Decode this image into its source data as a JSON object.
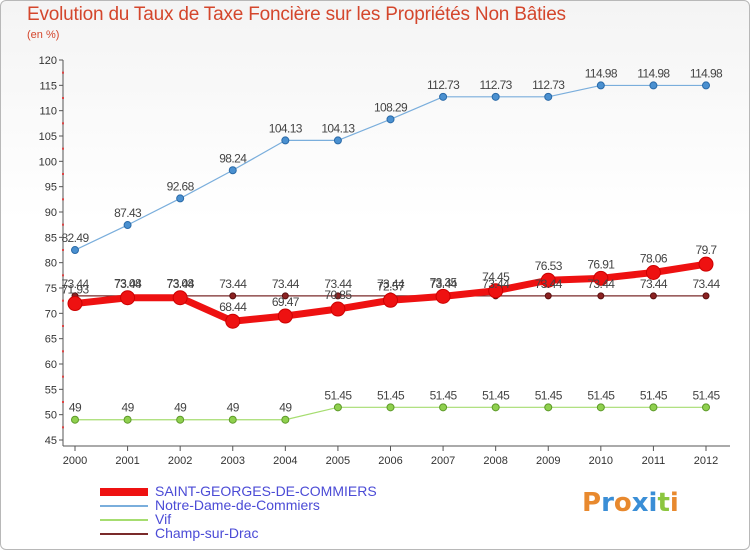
{
  "title": "Evolution du Taux de Taxe Foncière sur les Propriétés Non Bâties",
  "unit_label": "(en %)",
  "logo": {
    "text": "Proxiti",
    "letters": [
      "P",
      "r",
      "o",
      "x",
      "i",
      "t",
      "i"
    ],
    "colors": [
      "#e8892e",
      "#3a8ed6",
      "#e8892e",
      "#3a8ed6",
      "#3a8ed6",
      "#8cc63f",
      "#e8892e"
    ]
  },
  "chart_data": {
    "type": "line",
    "x": [
      "2000",
      "2001",
      "2002",
      "2003",
      "2004",
      "2005",
      "2006",
      "2007",
      "2008",
      "2009",
      "2010",
      "2011",
      "2012"
    ],
    "ylim": [
      45,
      120
    ],
    "yticks": [
      45,
      50,
      55,
      60,
      65,
      70,
      75,
      80,
      85,
      90,
      95,
      100,
      105,
      110,
      115,
      120
    ],
    "grid": false,
    "legend_position": "bottom-left",
    "series": [
      {
        "name": "SAINT-GEORGES-DE-COMMIERS",
        "color": "#ee1111",
        "marker_fill": "#ee1111",
        "marker_edge": "#cc0000",
        "width": 7,
        "marker_r": 7,
        "values": [
          71.93,
          73.08,
          73.08,
          68.44,
          69.47,
          70.85,
          72.57,
          73.35,
          74.45,
          76.53,
          76.91,
          78.06,
          79.7
        ],
        "labels": [
          "71.93",
          "73.08",
          "73.08",
          "68.44",
          "69.47",
          "70.85",
          "72.57",
          "73.35",
          "74.45",
          "76.53",
          "76.91",
          "78.06",
          "79.7"
        ]
      },
      {
        "name": "Notre-Dame-de-Commiers",
        "color": "#7aaedc",
        "marker_fill": "#4a90d0",
        "marker_edge": "#2a6aa8",
        "width": 1.2,
        "marker_r": 3.5,
        "values": [
          82.49,
          87.43,
          92.68,
          98.24,
          104.13,
          104.13,
          108.29,
          112.73,
          112.73,
          112.73,
          114.98,
          114.98,
          114.98
        ],
        "labels": [
          "82.49",
          "87.43",
          "92.68",
          "98.24",
          "104.13",
          "104.13",
          "108.29",
          "112.73",
          "112.73",
          "112.73",
          "114.98",
          "114.98",
          "114.98"
        ]
      },
      {
        "name": "Vif",
        "color": "#a6dd70",
        "marker_fill": "#8fd04e",
        "marker_edge": "#5e9a2a",
        "width": 1.2,
        "marker_r": 3.5,
        "values": [
          49,
          49,
          49,
          49,
          49,
          51.45,
          51.45,
          51.45,
          51.45,
          51.45,
          51.45,
          51.45,
          51.45
        ],
        "labels": [
          "49",
          "49",
          "49",
          "49",
          "49",
          "51.45",
          "51.45",
          "51.45",
          "51.45",
          "51.45",
          "51.45",
          "51.45",
          "51.45"
        ]
      },
      {
        "name": "Champ-sur-Drac",
        "color": "#7a2a2a",
        "marker_fill": "#8b2222",
        "marker_edge": "#5a1010",
        "width": 1.2,
        "marker_r": 3,
        "values": [
          73.44,
          73.44,
          73.44,
          73.44,
          73.44,
          73.44,
          73.44,
          73.44,
          73.44,
          73.44,
          73.44,
          73.44,
          73.44
        ],
        "labels": [
          "73.44",
          "73.44",
          "73.44",
          "73.44",
          "73.44",
          "73.44",
          "73.44",
          "73.44",
          "73.44",
          "73.44",
          "73.44",
          "73.44",
          "73.44"
        ]
      }
    ]
  }
}
